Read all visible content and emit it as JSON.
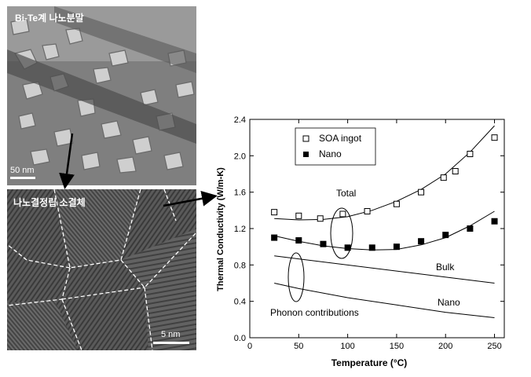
{
  "images": {
    "top_label": "Bi-Te계 나노분말",
    "top_scale": "50 nm",
    "bottom_label": "나노결정립 소결체",
    "bottom_scale": "5 nm"
  },
  "chart_data": {
    "type": "scatter",
    "xlabel": "Temperature (°C)",
    "ylabel": "Thermal Conductivity (W/m-K)",
    "xlim": [
      0,
      260
    ],
    "ylim": [
      0,
      2.4
    ],
    "xticks": [
      0,
      50,
      100,
      150,
      200,
      250
    ],
    "yticks": [
      0.0,
      0.4,
      0.8,
      1.2,
      1.6,
      2.0,
      2.4
    ],
    "grid": false,
    "legend_position": "top-left",
    "series": [
      {
        "name": "SOA ingot",
        "marker": "open-square",
        "x": [
          25,
          50,
          72,
          95,
          120,
          150,
          175,
          198,
          210,
          225,
          250
        ],
        "y": [
          1.38,
          1.34,
          1.31,
          1.36,
          1.39,
          1.47,
          1.6,
          1.76,
          1.83,
          2.02,
          2.2
        ]
      },
      {
        "name": "Nano",
        "marker": "filled-square",
        "x": [
          25,
          50,
          75,
          100,
          125,
          150,
          175,
          200,
          225,
          250
        ],
        "y": [
          1.1,
          1.07,
          1.03,
          0.99,
          0.99,
          1.0,
          1.06,
          1.13,
          1.2,
          1.28
        ]
      }
    ],
    "fits": [
      {
        "x": [
          25,
          50,
          75,
          100,
          125,
          150,
          175,
          200,
          225,
          250
        ],
        "y": [
          1.31,
          1.295,
          1.3,
          1.33,
          1.4,
          1.5,
          1.63,
          1.8,
          2.04,
          2.33
        ]
      },
      {
        "x": [
          25,
          50,
          75,
          100,
          125,
          150,
          175,
          200,
          225,
          250
        ],
        "y": [
          1.12,
          1.06,
          1.01,
          0.98,
          0.965,
          0.97,
          1.02,
          1.1,
          1.23,
          1.39
        ]
      },
      {
        "x": [
          25,
          250
        ],
        "y": [
          0.9,
          0.6
        ]
      },
      {
        "x": [
          25,
          50,
          100,
          150,
          200,
          250
        ],
        "y": [
          0.6,
          0.54,
          0.44,
          0.36,
          0.28,
          0.22
        ]
      }
    ],
    "annotations": {
      "total": "Total",
      "bulk": "Bulk",
      "nano": "Nano",
      "phonon": "Phonon contributions"
    }
  }
}
